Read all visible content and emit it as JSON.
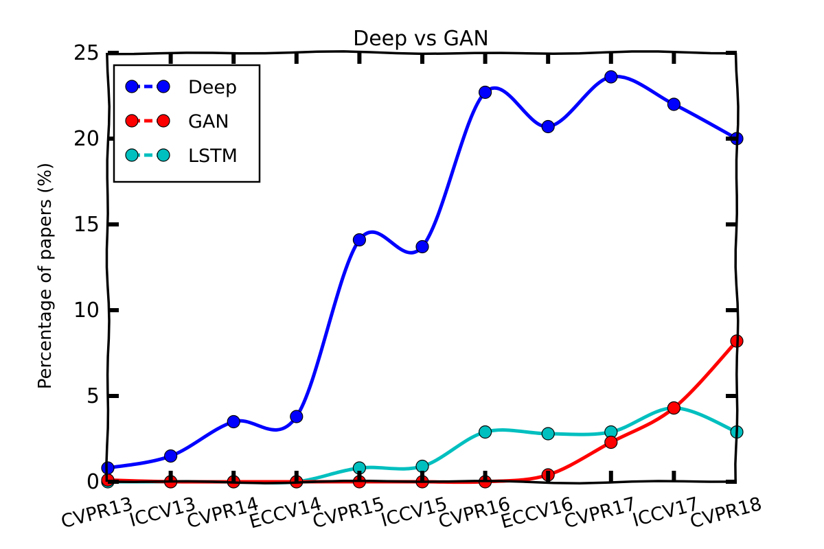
{
  "chart_data": {
    "type": "line",
    "title": "Deep vs GAN",
    "xlabel": "",
    "ylabel": "Percentage of papers (%)",
    "categories": [
      "CVPR13",
      "ICCV13",
      "CVPR14",
      "ECCV14",
      "CVPR15",
      "ICCV15",
      "CVPR16",
      "ECCV16",
      "CVPR17",
      "ICCV17",
      "CVPR18"
    ],
    "ylim": [
      0,
      25
    ],
    "yticks": [
      "0",
      "5",
      "10",
      "15",
      "20",
      "25"
    ],
    "grid": false,
    "legend_position": "top-left",
    "series": [
      {
        "name": "Deep",
        "color": "#0000ff",
        "values": [
          0.8,
          1.5,
          3.5,
          3.8,
          14.1,
          13.7,
          22.7,
          20.7,
          23.6,
          22.0,
          20.0
        ]
      },
      {
        "name": "GAN",
        "color": "#ff0000",
        "values": [
          0.1,
          0.0,
          0.0,
          0.0,
          0.0,
          0.0,
          0.0,
          0.4,
          2.3,
          4.3,
          8.2
        ]
      },
      {
        "name": "LSTM",
        "color": "#00bfbf",
        "values": [
          0.0,
          0.0,
          0.0,
          0.0,
          0.8,
          0.9,
          2.9,
          2.8,
          2.9,
          4.3,
          2.9
        ]
      }
    ]
  }
}
